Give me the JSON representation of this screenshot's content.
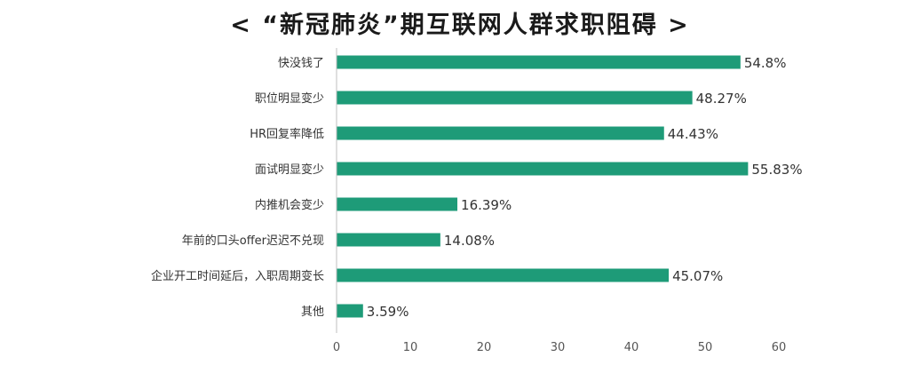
{
  "chart_data": {
    "type": "bar",
    "orientation": "horizontal",
    "title": "< “新冠肺炎”期互联网人群求职阻碍 >",
    "categories": [
      "快没钱了",
      "职位明显变少",
      "HR回复率降低",
      "面试明显变少",
      "内推机会变少",
      "年前的口头offer迟迟不兑现",
      "企业开工时间延后，入职周期变长",
      "其他"
    ],
    "values": [
      54.8,
      48.27,
      44.43,
      55.83,
      16.39,
      14.08,
      45.07,
      3.59
    ],
    "value_labels": [
      "54.8%",
      "48.27%",
      "44.43%",
      "55.83%",
      "16.39%",
      "14.08%",
      "45.07%",
      "3.59%"
    ],
    "xlim": [
      0,
      60
    ],
    "xticks": [
      "0",
      "10",
      "20",
      "30",
      "40",
      "50",
      "60"
    ],
    "xlabel": "",
    "ylabel": "",
    "grid": false,
    "legend": "none",
    "bar_color": "#1e9b78",
    "text_color": "#333333"
  }
}
